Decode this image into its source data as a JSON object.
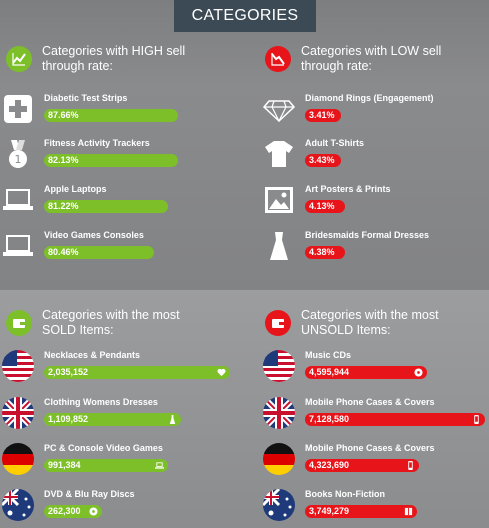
{
  "header": {
    "title": "CATEGORIES"
  },
  "high_sell": {
    "heading": "Categories with HIGH sell through rate:",
    "icon": "chart-up-icon",
    "color": "#7cbf28",
    "items": [
      {
        "label": "Diabetic Test Strips",
        "value": "87.66%",
        "icon": "medical-cross-icon",
        "fill": 0.8766
      },
      {
        "label": "Fitness Activity Trackers",
        "value": "82.13%",
        "icon": "medal-icon",
        "fill": 0.8213
      },
      {
        "label": "Apple Laptops",
        "value": "81.22%",
        "icon": "laptop-icon",
        "fill": 0.8122
      },
      {
        "label": "Video Games Consoles",
        "value": "80.46%",
        "icon": "laptop-icon",
        "fill": 0.8046
      }
    ]
  },
  "low_sell": {
    "heading": "Categories with LOW sell through rate:",
    "icon": "chart-down-icon",
    "color": "#e7141a",
    "items": [
      {
        "label": "Diamond Rings (Engagement)",
        "value": "3.41%",
        "icon": "diamond-icon",
        "fill": 0.0341
      },
      {
        "label": "Adult T-Shirts",
        "value": "3.43%",
        "icon": "tshirt-icon",
        "fill": 0.0343
      },
      {
        "label": "Art Posters & Prints",
        "value": "4.13%",
        "icon": "picture-icon",
        "fill": 0.0413
      },
      {
        "label": "Bridesmaids Formal Dresses",
        "value": "4.38%",
        "icon": "dress-icon",
        "fill": 0.0438
      }
    ]
  },
  "most_sold": {
    "heading": "Categories with the most SOLD Items:",
    "icon": "wallet-icon",
    "color": "#7cbf28",
    "items": [
      {
        "label": "Necklaces & Pendants",
        "value": "2,035,152",
        "flag": "usa-flag-icon",
        "end_icon": "heart-icon"
      },
      {
        "label": "Clothing Womens Dresses",
        "value": "1,109,852",
        "flag": "uk-flag-icon",
        "end_icon": "dress-icon"
      },
      {
        "label": "PC & Console Video Games",
        "value": "991,384",
        "flag": "germany-flag-icon",
        "end_icon": "laptop-icon"
      },
      {
        "label": "DVD & Blu Ray Discs",
        "value": "262,300",
        "flag": "australia-flag-icon",
        "end_icon": "disc-icon"
      }
    ]
  },
  "most_unsold": {
    "heading": "Categories with the most UNSOLD Items:",
    "icon": "wallet-icon",
    "color": "#e7141a",
    "items": [
      {
        "label": "Music CDs",
        "value": "4,595,944",
        "flag": "usa-flag-icon",
        "end_icon": "disc-icon"
      },
      {
        "label": "Mobile Phone Cases & Covers",
        "value": "7,128,580",
        "flag": "uk-flag-icon",
        "end_icon": "phone-icon"
      },
      {
        "label": "Mobile Phone Cases & Covers",
        "value": "4,323,690",
        "flag": "germany-flag-icon",
        "end_icon": "phone-icon"
      },
      {
        "label": "Books Non-Fiction",
        "value": "3,749,279",
        "flag": "australia-flag-icon",
        "end_icon": "book-icon"
      }
    ]
  }
}
